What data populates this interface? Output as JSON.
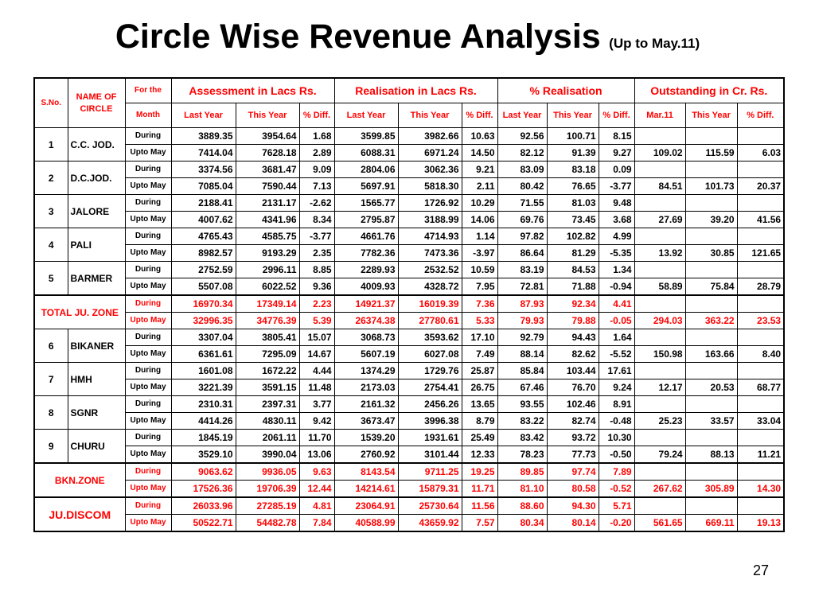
{
  "title": "Circle Wise Revenue Analysis",
  "subtitle": "(Up to May.11)",
  "page_number": "27",
  "headers": {
    "sno": "S.No.",
    "name": "NAME OF CIRCLE",
    "for_the": "For the",
    "month": "Month",
    "groups": [
      "Assessment in Lacs Rs.",
      "Realisation in Lacs Rs.",
      "% Realisation",
      "Outstanding in Cr. Rs."
    ],
    "sub": [
      "Last Year",
      "This Year",
      "% Diff.",
      "Last Year",
      "This Year",
      "% Diff.",
      "Last Year",
      "This Year",
      "% Diff.",
      "Mar.11",
      "This Year",
      "% Diff."
    ]
  },
  "rows": [
    {
      "sno": "1",
      "name": "C.C. JOD.",
      "red": false,
      "during": [
        "3889.35",
        "3954.64",
        "1.68",
        "3599.85",
        "3982.66",
        "10.63",
        "92.56",
        "100.71",
        "8.15",
        "",
        "",
        ""
      ],
      "upto": [
        "7414.04",
        "7628.18",
        "2.89",
        "6088.31",
        "6971.24",
        "14.50",
        "82.12",
        "91.39",
        "9.27",
        "109.02",
        "115.59",
        "6.03"
      ]
    },
    {
      "sno": "2",
      "name": "D.C.JOD.",
      "red": false,
      "during": [
        "3374.56",
        "3681.47",
        "9.09",
        "2804.06",
        "3062.36",
        "9.21",
        "83.09",
        "83.18",
        "0.09",
        "",
        "",
        ""
      ],
      "upto": [
        "7085.04",
        "7590.44",
        "7.13",
        "5697.91",
        "5818.30",
        "2.11",
        "80.42",
        "76.65",
        "-3.77",
        "84.51",
        "101.73",
        "20.37"
      ]
    },
    {
      "sno": "3",
      "name": "JALORE",
      "red": false,
      "during": [
        "2188.41",
        "2131.17",
        "-2.62",
        "1565.77",
        "1726.92",
        "10.29",
        "71.55",
        "81.03",
        "9.48",
        "",
        "",
        ""
      ],
      "upto": [
        "4007.62",
        "4341.96",
        "8.34",
        "2795.87",
        "3188.99",
        "14.06",
        "69.76",
        "73.45",
        "3.68",
        "27.69",
        "39.20",
        "41.56"
      ]
    },
    {
      "sno": "4",
      "name": "PALI",
      "red": false,
      "during": [
        "4765.43",
        "4585.75",
        "-3.77",
        "4661.76",
        "4714.93",
        "1.14",
        "97.82",
        "102.82",
        "4.99",
        "",
        "",
        ""
      ],
      "upto": [
        "8982.57",
        "9193.29",
        "2.35",
        "7782.36",
        "7473.36",
        "-3.97",
        "86.64",
        "81.29",
        "-5.35",
        "13.92",
        "30.85",
        "121.65"
      ]
    },
    {
      "sno": "5",
      "name": "BARMER",
      "red": false,
      "during": [
        "2752.59",
        "2996.11",
        "8.85",
        "2289.93",
        "2532.52",
        "10.59",
        "83.19",
        "84.53",
        "1.34",
        "",
        "",
        ""
      ],
      "upto": [
        "5507.08",
        "6022.52",
        "9.36",
        "4009.93",
        "4328.72",
        "7.95",
        "72.81",
        "71.88",
        "-0.94",
        "58.89",
        "75.84",
        "28.79"
      ]
    },
    {
      "sno": "",
      "name": "TOTAL JU. ZONE",
      "red": true,
      "during": [
        "16970.34",
        "17349.14",
        "2.23",
        "14921.37",
        "16019.39",
        "7.36",
        "87.93",
        "92.34",
        "4.41",
        "",
        "",
        ""
      ],
      "upto": [
        "32996.35",
        "34776.39",
        "5.39",
        "26374.38",
        "27780.61",
        "5.33",
        "79.93",
        "79.88",
        "-0.05",
        "294.03",
        "363.22",
        "23.53"
      ]
    },
    {
      "sno": "6",
      "name": "BIKANER",
      "red": false,
      "during": [
        "3307.04",
        "3805.41",
        "15.07",
        "3068.73",
        "3593.62",
        "17.10",
        "92.79",
        "94.43",
        "1.64",
        "",
        "",
        ""
      ],
      "upto": [
        "6361.61",
        "7295.09",
        "14.67",
        "5607.19",
        "6027.08",
        "7.49",
        "88.14",
        "82.62",
        "-5.52",
        "150.98",
        "163.66",
        "8.40"
      ]
    },
    {
      "sno": "7",
      "name": "HMH",
      "red": false,
      "during": [
        "1601.08",
        "1672.22",
        "4.44",
        "1374.29",
        "1729.76",
        "25.87",
        "85.84",
        "103.44",
        "17.61",
        "",
        "",
        ""
      ],
      "upto": [
        "3221.39",
        "3591.15",
        "11.48",
        "2173.03",
        "2754.41",
        "26.75",
        "67.46",
        "76.70",
        "9.24",
        "12.17",
        "20.53",
        "68.77"
      ]
    },
    {
      "sno": "8",
      "name": "SGNR",
      "red": false,
      "during": [
        "2310.31",
        "2397.31",
        "3.77",
        "2161.32",
        "2456.26",
        "13.65",
        "93.55",
        "102.46",
        "8.91",
        "",
        "",
        ""
      ],
      "upto": [
        "4414.26",
        "4830.11",
        "9.42",
        "3673.47",
        "3996.38",
        "8.79",
        "83.22",
        "82.74",
        "-0.48",
        "25.23",
        "33.57",
        "33.04"
      ]
    },
    {
      "sno": "9",
      "name": "CHURU",
      "red": false,
      "during": [
        "1845.19",
        "2061.11",
        "11.70",
        "1539.20",
        "1931.61",
        "25.49",
        "83.42",
        "93.72",
        "10.30",
        "",
        "",
        ""
      ],
      "upto": [
        "3529.10",
        "3990.04",
        "13.06",
        "2760.92",
        "3101.44",
        "12.33",
        "78.23",
        "77.73",
        "-0.50",
        "79.24",
        "88.13",
        "11.21"
      ]
    },
    {
      "sno": "",
      "name": "BKN.ZONE",
      "red": true,
      "during": [
        "9063.62",
        "9936.05",
        "9.63",
        "8143.54",
        "9711.25",
        "19.25",
        "89.85",
        "97.74",
        "7.89",
        "",
        "",
        ""
      ],
      "upto": [
        "17526.36",
        "19706.39",
        "12.44",
        "14214.61",
        "15879.31",
        "11.71",
        "81.10",
        "80.58",
        "-0.52",
        "267.62",
        "305.89",
        "14.30"
      ]
    },
    {
      "sno": "",
      "name": "JU.DISCOM",
      "red": true,
      "big": true,
      "during": [
        "26033.96",
        "27285.19",
        "4.81",
        "23064.91",
        "25730.64",
        "11.56",
        "88.60",
        "94.30",
        "5.71",
        "",
        "",
        ""
      ],
      "upto": [
        "50522.71",
        "54482.78",
        "7.84",
        "40588.99",
        "43659.92",
        "7.57",
        "80.34",
        "80.14",
        "-0.20",
        "561.65",
        "669.11",
        "19.13"
      ]
    }
  ],
  "labels": {
    "during": "During",
    "upto": "Upto May"
  }
}
